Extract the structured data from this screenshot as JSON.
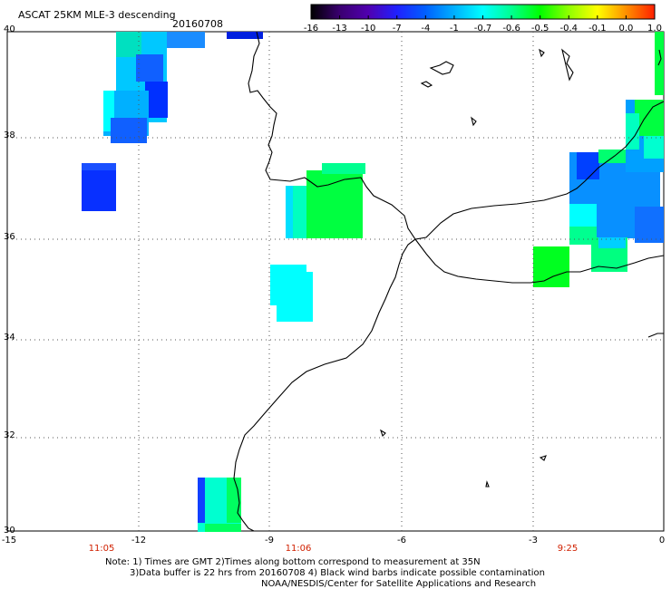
{
  "header": {
    "title": "ASCAT 25KM MLE-3 descending",
    "date": "20160708"
  },
  "color_scale": {
    "labels": [
      "-16",
      "-13",
      "-10",
      "-7",
      "-4",
      "-1",
      "-0.7",
      "-0.6",
      "-0.5",
      "-0.4",
      "-0.1",
      "0.0",
      "1.0"
    ],
    "colors": [
      "#000000",
      "#3a0070",
      "#5000b0",
      "#2020ff",
      "#0060ff",
      "#00b0ff",
      "#00ffff",
      "#00ff90",
      "#00ff00",
      "#90ff00",
      "#ffff00",
      "#ff9000",
      "#ff2000"
    ]
  },
  "axes": {
    "lat_labels": [
      "40",
      "38",
      "36",
      "34",
      "32",
      "30"
    ],
    "lon_labels": [
      "-15",
      "-12",
      "-9",
      "-6",
      "-3",
      "0"
    ],
    "time_labels": [
      "11:05",
      "11:06",
      "9:25"
    ]
  },
  "notes": {
    "line1": "Note: 1) Times are GMT 2)Times along bottom correspond to measurement at 35N",
    "line2": "3)Data buffer is 22 hrs from 20160708 4) Black wind barbs indicate possible contamination",
    "line3": "NOAA/NESDIS/Center for Satellite Applications and Research"
  }
}
